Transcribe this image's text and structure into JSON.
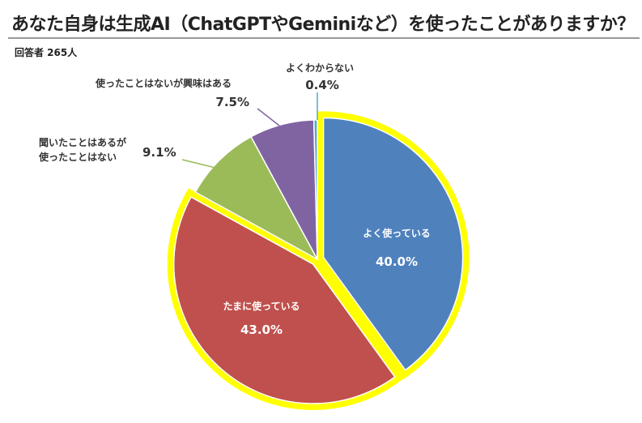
{
  "title": "あなた自身は生成AI（ChatGPTやGeminiなど）を使ったことがありますか？",
  "subtitle": "回答者 265人",
  "chart_data": {
    "type": "pie",
    "start": "top",
    "direction": "clockwise",
    "highlight_color": "#FFFF00",
    "slices": [
      {
        "label": "よく使っている",
        "value": 40.0,
        "display": "40.0%",
        "color": "#4F81BD",
        "highlighted": true,
        "label_position": "inside"
      },
      {
        "label": "たまに使っている",
        "value": 43.0,
        "display": "43.0%",
        "color": "#C0504D",
        "highlighted": true,
        "label_position": "inside"
      },
      {
        "label": "聞いたことはあるが\n使ったことはない",
        "value": 9.1,
        "display": "9.1%",
        "color": "#9BBB59",
        "highlighted": false,
        "label_position": "outside"
      },
      {
        "label": "使ったことはないが興味はある",
        "value": 7.5,
        "display": "7.5%",
        "color": "#8064A2",
        "highlighted": false,
        "label_position": "outside"
      },
      {
        "label": "よくわからない",
        "value": 0.4,
        "display": "0.4%",
        "color": "#4BACC6",
        "highlighted": false,
        "label_position": "outside"
      }
    ]
  }
}
